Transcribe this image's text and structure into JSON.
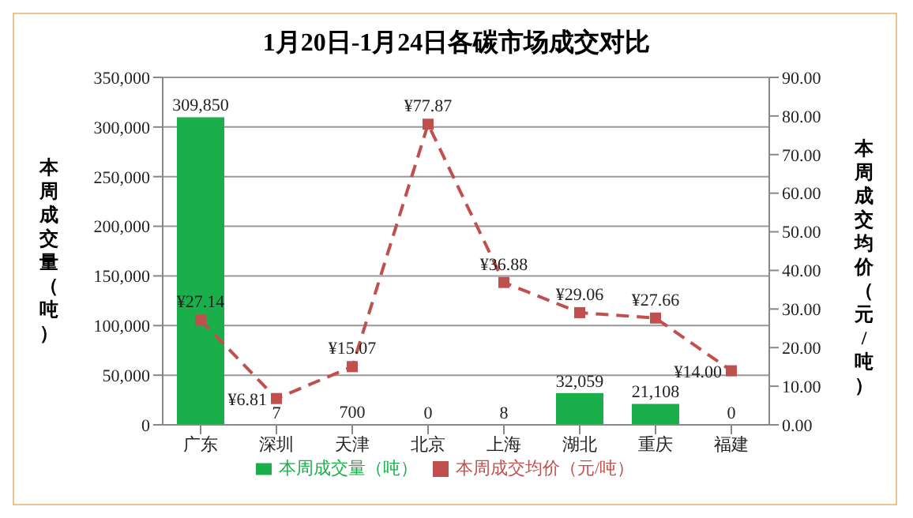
{
  "chart_data": {
    "type": "bar",
    "title": "1月20日-1月24日各碳市场成交对比",
    "ylabel": "本周成交量（吨）",
    "y2label": "本周成交均价（元/吨）",
    "categories": [
      "广东",
      "深圳",
      "天津",
      "北京",
      "上海",
      "湖北",
      "重庆",
      "福建"
    ],
    "series": [
      {
        "name": "本周成交量（吨）",
        "color": "#1aaf4b",
        "values": [
          309850,
          7,
          700,
          0,
          8,
          32059,
          21108,
          0
        ],
        "value_labels": [
          "309,850",
          "7",
          "700",
          "0",
          "8",
          "32,059",
          "21,108",
          "0"
        ]
      },
      {
        "name": "本周成交均价（元/吨）",
        "type": "line",
        "axis": "y2",
        "color": "#c0504d",
        "values": [
          27.14,
          6.81,
          15.07,
          77.87,
          36.88,
          29.06,
          27.66,
          14.0
        ],
        "value_labels": [
          "¥27.14",
          "¥6.81",
          "¥15.07",
          "¥77.87",
          "¥36.88",
          "¥29.06",
          "¥27.66",
          "¥14.00"
        ],
        "marker": "square",
        "line_style": "dashed"
      }
    ],
    "ylim": [
      0,
      350000
    ],
    "yticks": [
      {
        "value": 0,
        "label": "0"
      },
      {
        "value": 50000,
        "label": "50,000"
      },
      {
        "value": 100000,
        "label": "100,000"
      },
      {
        "value": 150000,
        "label": "150,000"
      },
      {
        "value": 200000,
        "label": "200,000"
      },
      {
        "value": 250000,
        "label": "250,000"
      },
      {
        "value": 300000,
        "label": "300,000"
      },
      {
        "value": 350000,
        "label": "350,000"
      }
    ],
    "y2lim": [
      0,
      90
    ],
    "y2ticks": [
      {
        "value": 0,
        "label": "0.00"
      },
      {
        "value": 10,
        "label": "10.00"
      },
      {
        "value": 20,
        "label": "20.00"
      },
      {
        "value": 30,
        "label": "30.00"
      },
      {
        "value": 40,
        "label": "40.00"
      },
      {
        "value": 50,
        "label": "50.00"
      },
      {
        "value": 60,
        "label": "60.00"
      },
      {
        "value": 70,
        "label": "70.00"
      },
      {
        "value": 80,
        "label": "80.00"
      },
      {
        "value": 90,
        "label": "90.00"
      }
    ],
    "grid": "y",
    "legend": "bottom"
  }
}
